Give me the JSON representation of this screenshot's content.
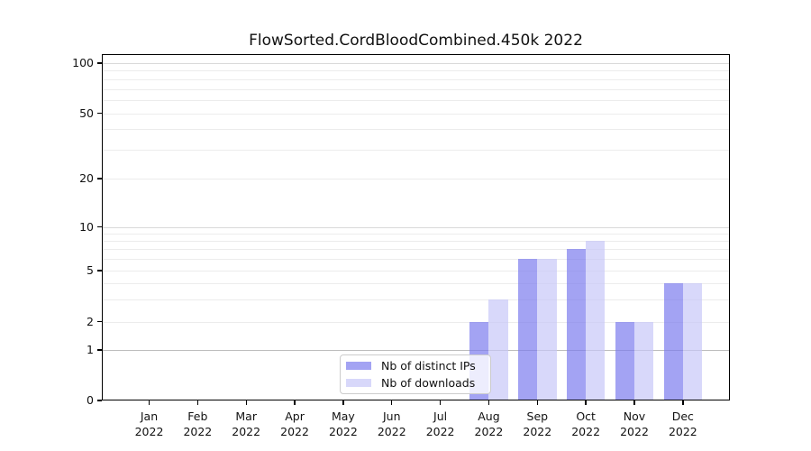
{
  "title": "FlowSorted.CordBloodCombined.450k 2022",
  "legend": {
    "items": [
      {
        "label": "Nb of distinct IPs",
        "color": "rgba(124,124,238,0.7)"
      },
      {
        "label": "Nb of downloads",
        "color": "rgba(199,199,248,0.7)"
      }
    ]
  },
  "axis": {
    "year": "2022",
    "months": [
      "Jan",
      "Feb",
      "Mar",
      "Apr",
      "May",
      "Jun",
      "Jul",
      "Aug",
      "Sep",
      "Oct",
      "Nov",
      "Dec"
    ],
    "ytick_values": [
      0,
      1,
      2,
      5,
      10,
      20,
      50,
      100
    ]
  },
  "colors": {
    "bar_ips": "rgba(124,124,238,0.7)",
    "bar_downloads": "rgba(199,199,248,0.7)",
    "grid_minor": "#ececec",
    "grid_major": "#d9d9d9",
    "grid_baseline_one": "#bdbdbd",
    "spine": "#000000"
  },
  "chart_data": {
    "type": "bar",
    "title": "FlowSorted.CordBloodCombined.450k 2022",
    "categories": [
      "Jan 2022",
      "Feb 2022",
      "Mar 2022",
      "Apr 2022",
      "May 2022",
      "Jun 2022",
      "Jul 2022",
      "Aug 2022",
      "Sep 2022",
      "Oct 2022",
      "Nov 2022",
      "Dec 2022"
    ],
    "series": [
      {
        "name": "Nb of distinct IPs",
        "values": [
          0,
          0,
          0,
          0,
          0,
          0,
          0,
          2,
          6,
          7,
          2,
          4
        ]
      },
      {
        "name": "Nb of downloads",
        "values": [
          0,
          0,
          0,
          0,
          0,
          0,
          0,
          3,
          6,
          8,
          2,
          4
        ]
      }
    ],
    "xlabel": "",
    "ylabel": "",
    "yscale": "log-like",
    "yticks": [
      0,
      1,
      2,
      5,
      10,
      20,
      50,
      100
    ],
    "ylim": [
      0,
      100
    ],
    "grid": "horizontal, minor and major lines",
    "legend_position": "inside lower-center-left"
  }
}
